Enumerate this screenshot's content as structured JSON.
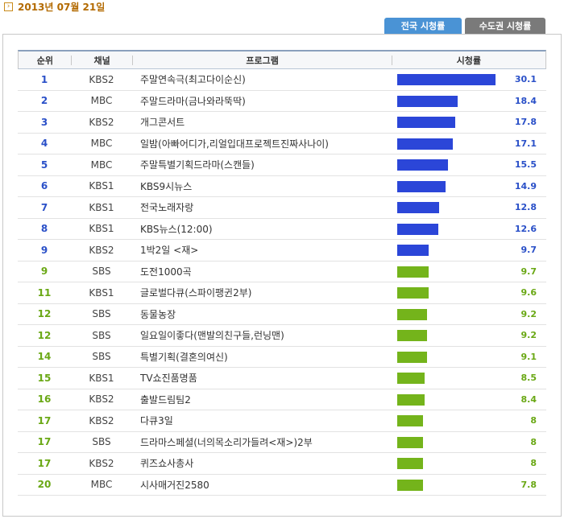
{
  "date_label": "2013년 07월 21일",
  "tabs": {
    "national": "전국 시청률",
    "capital": "수도권 시청률"
  },
  "headers": {
    "rank": "순위",
    "channel": "채널",
    "program": "프로그램",
    "rating": "시청률"
  },
  "colors": {
    "blue": "#2b46d8",
    "green": "#74b41b",
    "blue_text": "#2a50c8",
    "green_text": "#6aa815",
    "tab_active": "#4a93d5",
    "tab_inactive": "#7a7a7a"
  },
  "rows": [
    {
      "rank": "1",
      "channel": "KBS2",
      "program": "주말연속극(최고다이순신)",
      "rating": "30.1",
      "value": 30.1,
      "color": "blue"
    },
    {
      "rank": "2",
      "channel": "MBC",
      "program": "주말드라마(금나와라뚝딱)",
      "rating": "18.4",
      "value": 18.4,
      "color": "blue"
    },
    {
      "rank": "3",
      "channel": "KBS2",
      "program": "개그콘서트",
      "rating": "17.8",
      "value": 17.8,
      "color": "blue"
    },
    {
      "rank": "4",
      "channel": "MBC",
      "program": "일밤(아빠어디가,리얼입대프로젝트진짜사나이)",
      "rating": "17.1",
      "value": 17.1,
      "color": "blue"
    },
    {
      "rank": "5",
      "channel": "MBC",
      "program": "주말특별기획드라마(스캔들)",
      "rating": "15.5",
      "value": 15.5,
      "color": "blue"
    },
    {
      "rank": "6",
      "channel": "KBS1",
      "program": "KBS9시뉴스",
      "rating": "14.9",
      "value": 14.9,
      "color": "blue"
    },
    {
      "rank": "7",
      "channel": "KBS1",
      "program": "전국노래자랑",
      "rating": "12.8",
      "value": 12.8,
      "color": "blue"
    },
    {
      "rank": "8",
      "channel": "KBS1",
      "program": "KBS뉴스(12:00)",
      "rating": "12.6",
      "value": 12.6,
      "color": "blue"
    },
    {
      "rank": "9",
      "channel": "KBS2",
      "program": "1박2일 <재>",
      "rating": "9.7",
      "value": 9.7,
      "color": "blue"
    },
    {
      "rank": "9",
      "channel": "SBS",
      "program": "도전1000곡",
      "rating": "9.7",
      "value": 9.7,
      "color": "green"
    },
    {
      "rank": "11",
      "channel": "KBS1",
      "program": "글로벌다큐(스파이팽귄2부)",
      "rating": "9.6",
      "value": 9.6,
      "color": "green"
    },
    {
      "rank": "12",
      "channel": "SBS",
      "program": "동물농장",
      "rating": "9.2",
      "value": 9.2,
      "color": "green"
    },
    {
      "rank": "12",
      "channel": "SBS",
      "program": "일요일이좋다(맨발의친구들,런닝맨)",
      "rating": "9.2",
      "value": 9.2,
      "color": "green"
    },
    {
      "rank": "14",
      "channel": "SBS",
      "program": "특별기획(결혼의여신)",
      "rating": "9.1",
      "value": 9.1,
      "color": "green"
    },
    {
      "rank": "15",
      "channel": "KBS1",
      "program": "TV쇼진품명품",
      "rating": "8.5",
      "value": 8.5,
      "color": "green"
    },
    {
      "rank": "16",
      "channel": "KBS2",
      "program": "출발드림팀2",
      "rating": "8.4",
      "value": 8.4,
      "color": "green"
    },
    {
      "rank": "17",
      "channel": "KBS2",
      "program": "다큐3일",
      "rating": "8",
      "value": 8,
      "color": "green"
    },
    {
      "rank": "17",
      "channel": "SBS",
      "program": "드라마스페셜(너의목소리가들려<재>)2부",
      "rating": "8",
      "value": 8,
      "color": "green"
    },
    {
      "rank": "17",
      "channel": "KBS2",
      "program": "퀴즈쇼사총사",
      "rating": "8",
      "value": 8,
      "color": "green"
    },
    {
      "rank": "20",
      "channel": "MBC",
      "program": "시사매거진2580",
      "rating": "7.8",
      "value": 7.8,
      "color": "green"
    }
  ]
}
